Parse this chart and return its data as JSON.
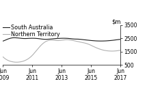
{
  "ylim": [
    500,
    3500
  ],
  "yticks": [
    500,
    1500,
    2500,
    3500
  ],
  "xtick_labels": [
    "Jun\n2009",
    "Jun\n2011",
    "Jun\n2013",
    "Jun\n2015",
    "Jun\n2017"
  ],
  "xtick_positions": [
    0,
    24,
    48,
    72,
    96
  ],
  "n_points": 97,
  "south_australia": [
    2300,
    2330,
    2370,
    2410,
    2450,
    2480,
    2510,
    2530,
    2545,
    2550,
    2548,
    2542,
    2535,
    2525,
    2515,
    2505,
    2495,
    2490,
    2488,
    2490,
    2495,
    2500,
    2505,
    2508,
    2510,
    2508,
    2505,
    2500,
    2492,
    2483,
    2472,
    2460,
    2448,
    2440,
    2435,
    2432,
    2435,
    2440,
    2448,
    2455,
    2462,
    2470,
    2478,
    2485,
    2490,
    2495,
    2500,
    2505,
    2508,
    2510,
    2510,
    2508,
    2505,
    2500,
    2492,
    2483,
    2472,
    2462,
    2455,
    2450,
    2448,
    2445,
    2440,
    2432,
    2422,
    2412,
    2400,
    2390,
    2380,
    2370,
    2360,
    2350,
    2340,
    2332,
    2325,
    2318,
    2312,
    2308,
    2305,
    2303,
    2302,
    2303,
    2305,
    2308,
    2312,
    2318,
    2325,
    2332,
    2340,
    2350,
    2360,
    2372,
    2385,
    2398,
    2410,
    2420,
    2425
  ],
  "northern_territory": [
    1100,
    1020,
    950,
    890,
    840,
    800,
    770,
    745,
    725,
    710,
    700,
    698,
    700,
    708,
    720,
    738,
    760,
    790,
    825,
    870,
    920,
    980,
    1050,
    1130,
    1220,
    1320,
    1430,
    1540,
    1650,
    1760,
    1870,
    1970,
    2060,
    2140,
    2210,
    2265,
    2305,
    2335,
    2355,
    2365,
    2370,
    2368,
    2360,
    2348,
    2340,
    2338,
    2342,
    2350,
    2360,
    2372,
    2385,
    2395,
    2400,
    2398,
    2390,
    2378,
    2362,
    2345,
    2325,
    2305,
    2285,
    2265,
    2245,
    2225,
    2205,
    2185,
    2165,
    2145,
    2120,
    2090,
    2055,
    2015,
    1972,
    1928,
    1885,
    1842,
    1800,
    1762,
    1725,
    1692,
    1662,
    1635,
    1610,
    1590,
    1575,
    1562,
    1552,
    1545,
    1540,
    1538,
    1540,
    1545,
    1552,
    1562,
    1575,
    1590,
    1608
  ],
  "sa_color": "#1a1a1a",
  "nt_color": "#b0b0b0",
  "background_color": "#ffffff",
  "legend_fontsize": 5.8,
  "axis_fontsize": 5.5,
  "ylabel_fontsize": 6.0
}
